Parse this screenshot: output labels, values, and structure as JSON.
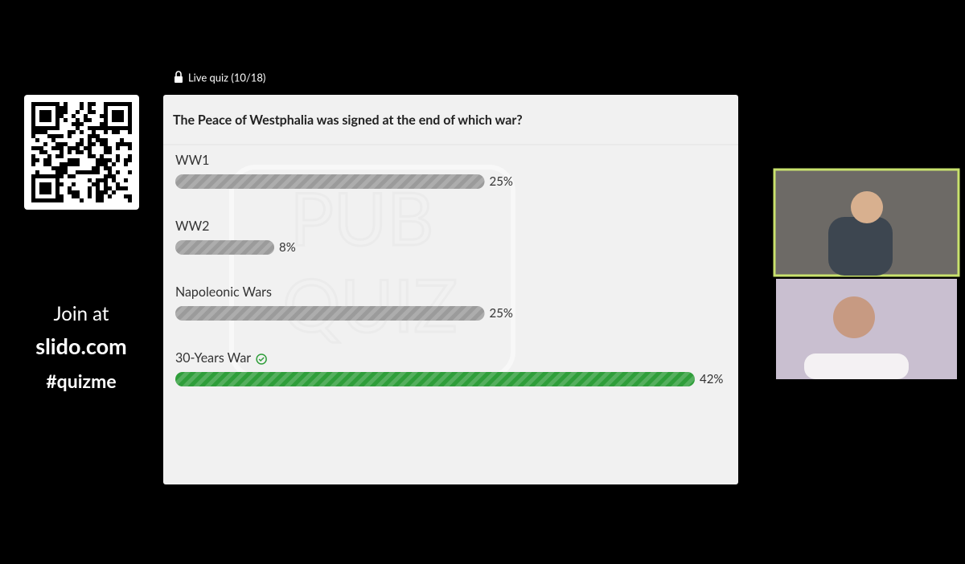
{
  "quiz_label": "Live quiz (10/18)",
  "sidebar": {
    "join": "Join at",
    "site": "slido.com",
    "code": "#quizme"
  },
  "watermark": [
    "PUB",
    "QUIZ"
  ],
  "chart_data": {
    "type": "bar",
    "orientation": "horizontal",
    "title": "The Peace of Westphalia was signed at the end of which war?",
    "categories": [
      "WW1",
      "WW2",
      "Napoleonic Wars",
      "30-Years War"
    ],
    "values": [
      25,
      8,
      25,
      42
    ],
    "value_labels": [
      "25%",
      "8%",
      "25%",
      "42%"
    ],
    "colors": [
      "#9b9b9b",
      "#9b9b9b",
      "#9b9b9b",
      "#2f9e3a"
    ],
    "correct_index": 3
  }
}
